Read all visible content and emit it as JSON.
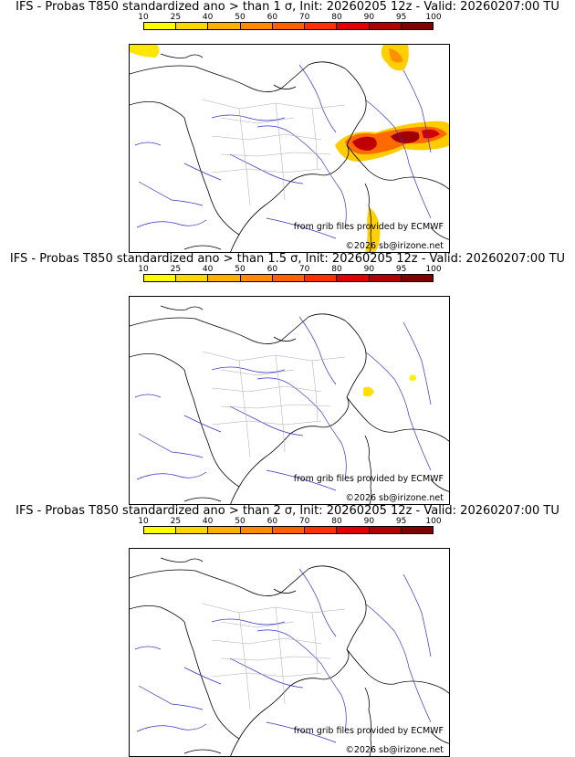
{
  "scale": {
    "labels": [
      "10",
      "25",
      "40",
      "50",
      "60",
      "70",
      "80",
      "90",
      "95",
      "100"
    ],
    "colors": [
      "#ffff00",
      "#ffd700",
      "#ffb000",
      "#ff8c00",
      "#ff6000",
      "#ff3000",
      "#e00000",
      "#b00000",
      "#800000"
    ]
  },
  "panels": [
    {
      "title": "IFS - Probas T850  standardized ano > than 1 σ, Init: 20260205 12z - Valid: 20260207:00 TU"
    },
    {
      "title": "IFS - Probas T850  standardized ano > than 1.5 σ, Init: 20260205 12z - Valid: 20260207:00 TU"
    },
    {
      "title": "IFS - Probas T850  standardized ano > than 2 σ, Init: 20260205 12z - Valid: 20260207:00 TU"
    }
  ],
  "credits": {
    "source": "from grib files provided by ECMWF",
    "copyright": "©2026 sb@irizone.net"
  }
}
